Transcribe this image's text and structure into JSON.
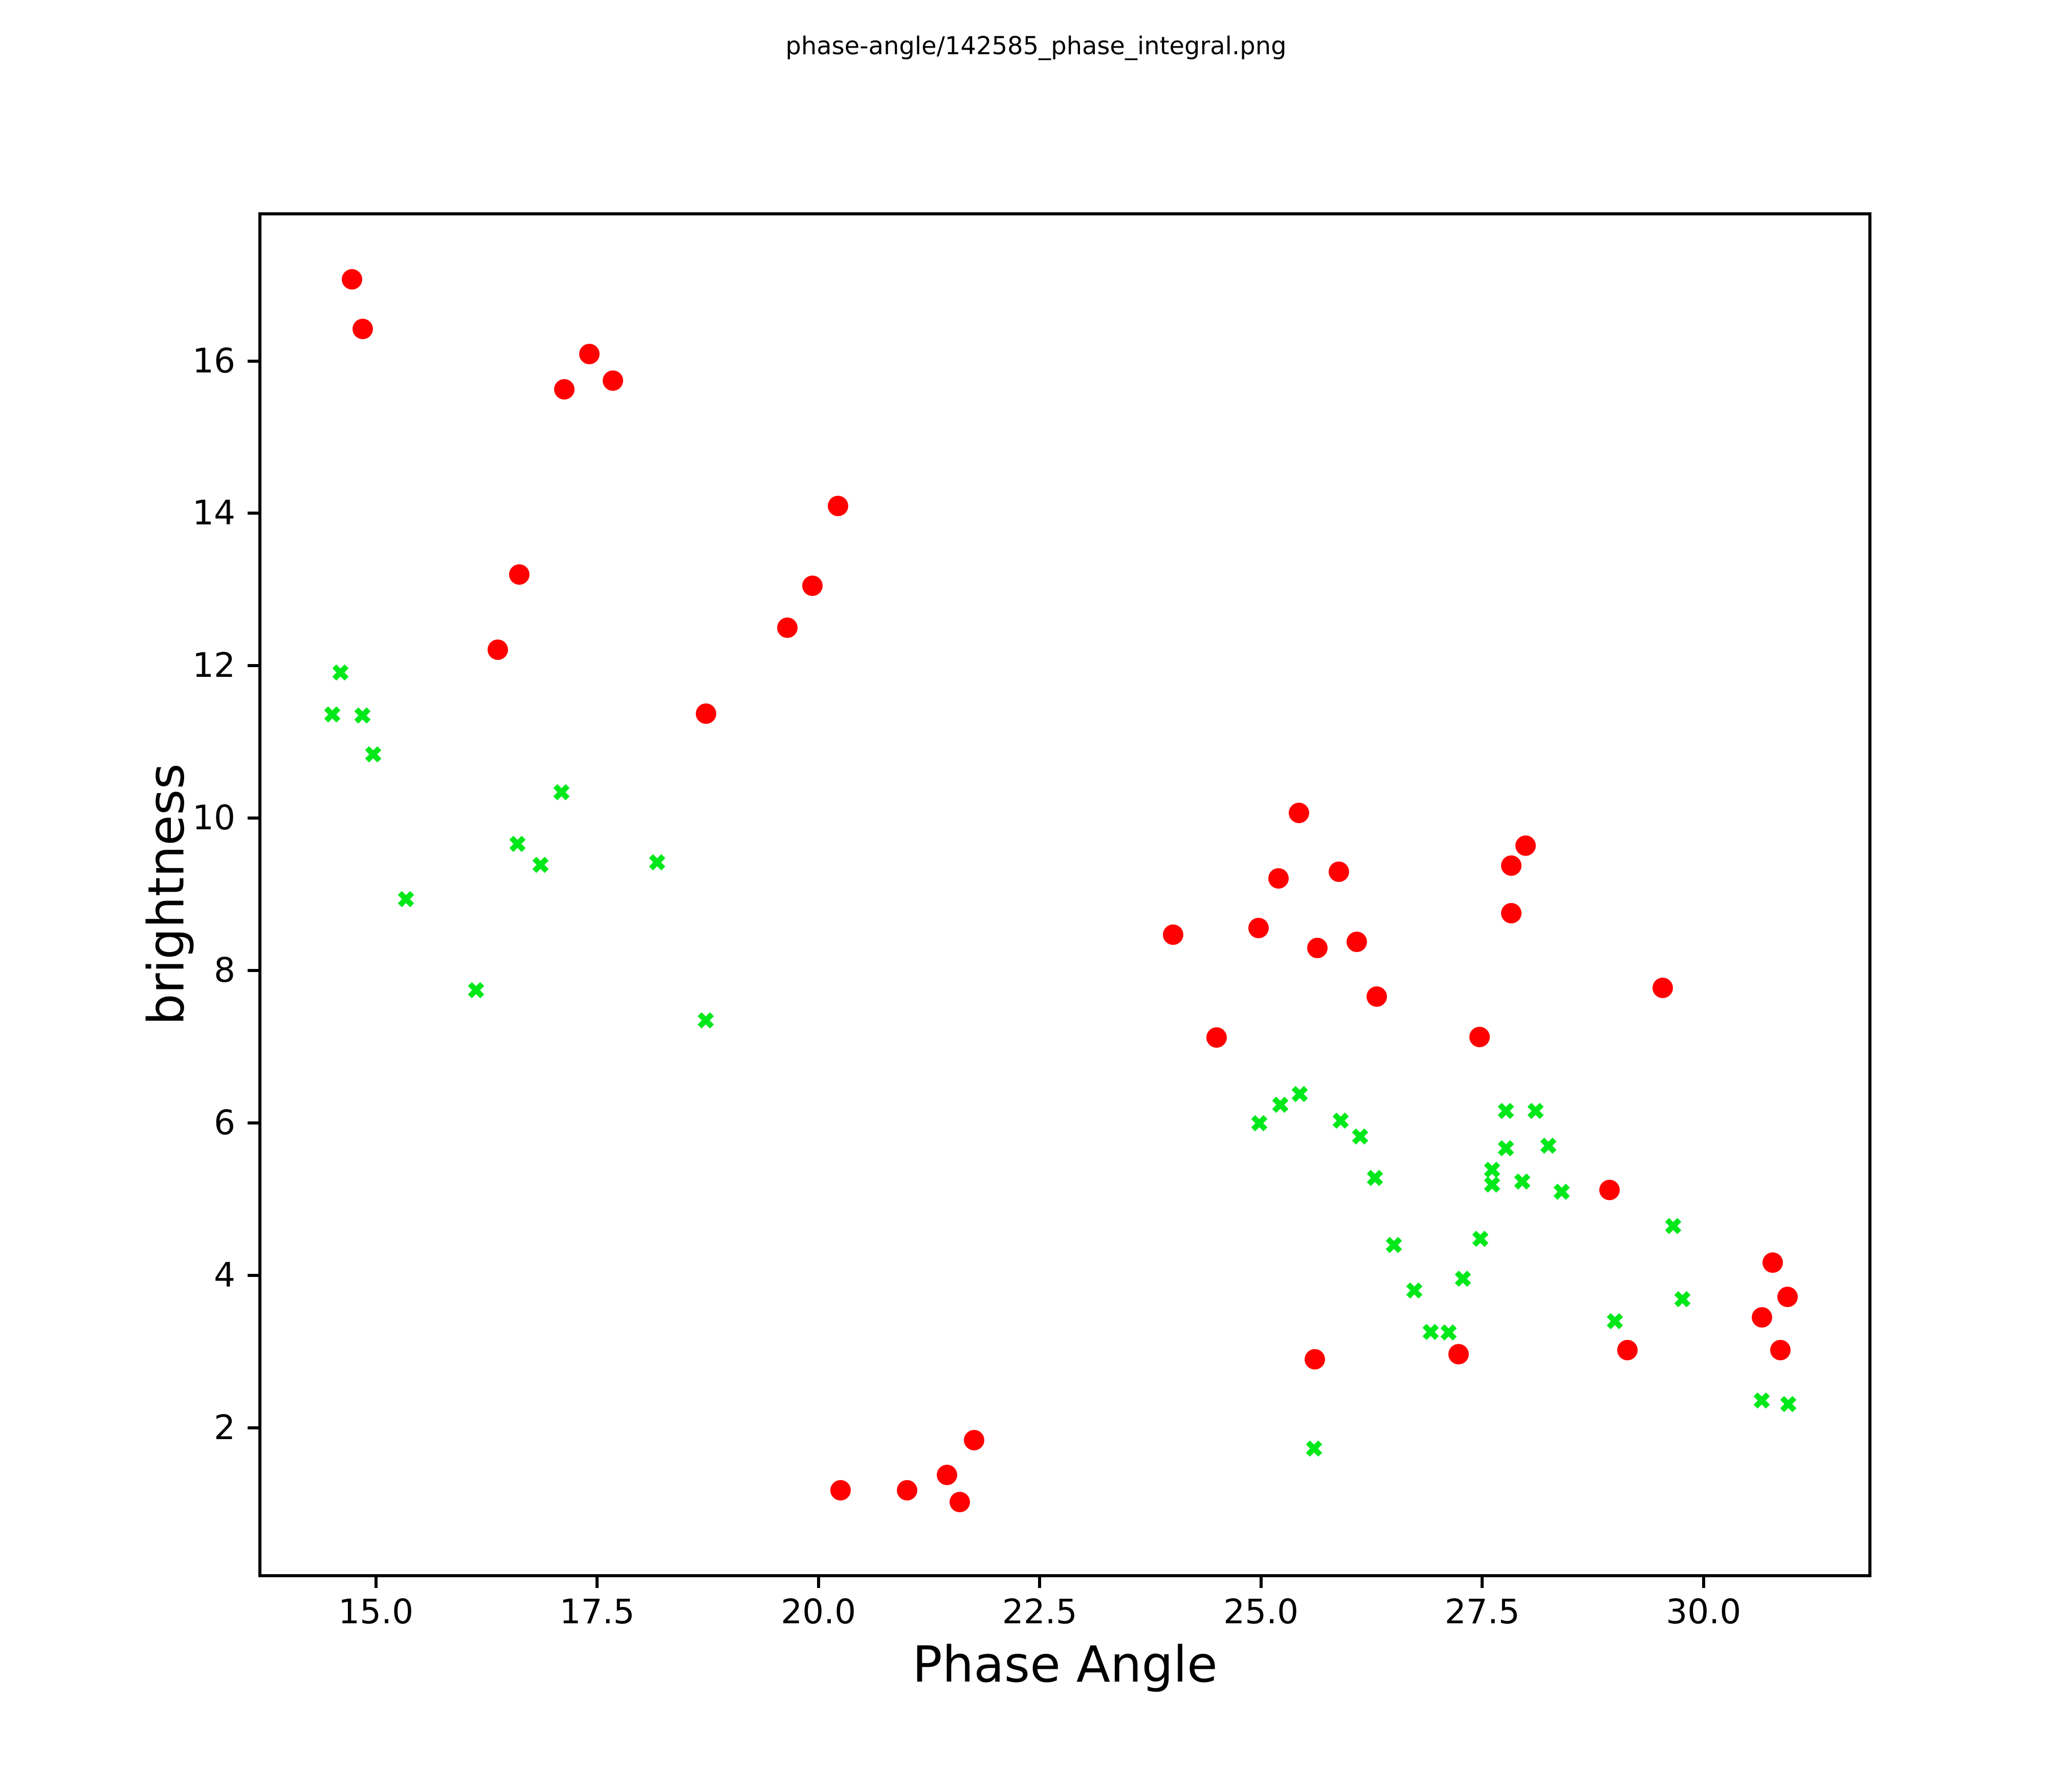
{
  "title": "phase-angle/142585_phase_integral.png",
  "chart_data": {
    "type": "scatter",
    "title": "phase-angle/142585_phase_integral.png",
    "xlabel": "Phase Angle",
    "ylabel": "brightness",
    "xlim": [
      13.69,
      31.88
    ],
    "ylim": [
      0.06,
      17.93
    ],
    "grid": false,
    "legend_position": "none",
    "background_color": "#ffffff",
    "axis_color": "#000000",
    "xticks": {
      "values": [
        15.0,
        17.5,
        20.0,
        22.5,
        25.0,
        27.5,
        30.0
      ],
      "labels": [
        "15.0",
        "17.5",
        "20.0",
        "22.5",
        "25.0",
        "27.5",
        "30.0"
      ]
    },
    "yticks": {
      "values": [
        2,
        4,
        6,
        8,
        10,
        12,
        14,
        16
      ],
      "labels": [
        "2",
        "4",
        "6",
        "8",
        "10",
        "12",
        "14",
        "16"
      ]
    },
    "series": [
      {
        "name": "red-circles",
        "marker": "circle",
        "color": "#ff0000",
        "marker_size_px": 40,
        "points": [
          [
            14.73,
            17.07
          ],
          [
            14.85,
            16.42
          ],
          [
            17.41,
            16.09
          ],
          [
            17.13,
            15.63
          ],
          [
            17.68,
            15.74
          ],
          [
            20.22,
            14.1
          ],
          [
            16.62,
            13.2
          ],
          [
            19.93,
            13.05
          ],
          [
            19.65,
            12.5
          ],
          [
            16.38,
            12.21
          ],
          [
            18.73,
            11.37
          ],
          [
            25.43,
            10.07
          ],
          [
            27.99,
            9.64
          ],
          [
            27.83,
            9.38
          ],
          [
            25.2,
            9.21
          ],
          [
            25.88,
            9.3
          ],
          [
            27.83,
            8.75
          ],
          [
            24.97,
            8.56
          ],
          [
            24.01,
            8.47
          ],
          [
            25.64,
            8.3
          ],
          [
            26.08,
            8.38
          ],
          [
            26.31,
            7.66
          ],
          [
            24.5,
            7.12
          ],
          [
            27.47,
            7.13
          ],
          [
            29.54,
            7.77
          ],
          [
            28.94,
            5.12
          ],
          [
            29.14,
            3.02
          ],
          [
            30.78,
            4.17
          ],
          [
            30.95,
            3.72
          ],
          [
            30.66,
            3.45
          ],
          [
            30.87,
            3.02
          ],
          [
            25.61,
            2.9
          ],
          [
            27.23,
            2.97
          ],
          [
            20.25,
            1.18
          ],
          [
            21.0,
            1.18
          ],
          [
            21.45,
            1.38
          ],
          [
            21.6,
            1.03
          ],
          [
            21.76,
            1.84
          ]
        ]
      },
      {
        "name": "green-crosses",
        "marker": "x",
        "color": "#00e81a",
        "marker_size_px": 35,
        "points": [
          [
            14.6,
            11.91
          ],
          [
            14.51,
            11.36
          ],
          [
            14.85,
            11.35
          ],
          [
            14.97,
            10.84
          ],
          [
            17.1,
            10.34
          ],
          [
            16.6,
            9.66
          ],
          [
            16.86,
            9.39
          ],
          [
            18.18,
            9.42
          ],
          [
            15.34,
            8.94
          ],
          [
            16.13,
            7.74
          ],
          [
            18.73,
            7.35
          ],
          [
            25.44,
            6.38
          ],
          [
            25.22,
            6.24
          ],
          [
            24.98,
            6.0
          ],
          [
            25.9,
            6.03
          ],
          [
            26.12,
            5.82
          ],
          [
            26.29,
            5.28
          ],
          [
            27.77,
            6.16
          ],
          [
            28.1,
            6.16
          ],
          [
            27.77,
            5.67
          ],
          [
            28.25,
            5.7
          ],
          [
            27.61,
            5.39
          ],
          [
            27.61,
            5.19
          ],
          [
            27.95,
            5.23
          ],
          [
            28.4,
            5.1
          ],
          [
            26.5,
            4.4
          ],
          [
            27.48,
            4.48
          ],
          [
            27.28,
            3.96
          ],
          [
            26.73,
            3.8
          ],
          [
            26.92,
            3.26
          ],
          [
            27.12,
            3.25
          ],
          [
            29.0,
            3.4
          ],
          [
            29.66,
            4.65
          ],
          [
            29.76,
            3.69
          ],
          [
            30.66,
            2.36
          ],
          [
            30.96,
            2.31
          ],
          [
            25.6,
            1.73
          ]
        ]
      }
    ]
  }
}
